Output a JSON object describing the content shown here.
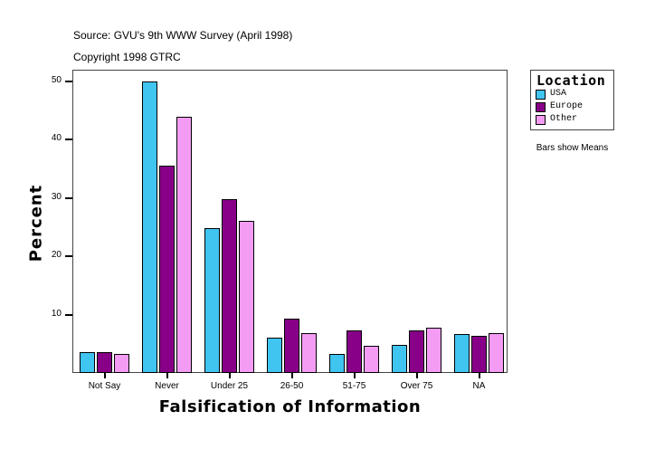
{
  "header": {
    "source": "Source: GVU's 9th WWW Survey (April 1998)",
    "copyright": "Copyright 1998 GTRC"
  },
  "legend": {
    "title": "Location",
    "items": [
      {
        "label": "USA",
        "color": "#40c4f0"
      },
      {
        "label": "Europe",
        "color": "#880088"
      },
      {
        "label": "Other",
        "color": "#f49cf4"
      }
    ],
    "note": "Bars show Means"
  },
  "axes": {
    "x_title": "Falsification of Information",
    "y_title": "Percent",
    "y_ticks": [
      "10",
      "20",
      "30",
      "40",
      "50"
    ]
  },
  "chart_data": {
    "type": "bar",
    "title": "",
    "subtitle": "Source: GVU's 9th WWW Survey (April 1998) / Copyright 1998 GTRC",
    "xlabel": "Falsification of Information",
    "ylabel": "Percent",
    "categories": [
      "Not Say",
      "Never",
      "Under 25",
      "26-50",
      "51-75",
      "Over 75",
      "NA"
    ],
    "series": [
      {
        "name": "USA",
        "color": "#40c4f0",
        "values": [
          3.6,
          50.0,
          24.8,
          6.0,
          3.3,
          4.8,
          6.7
        ]
      },
      {
        "name": "Europe",
        "color": "#880088",
        "values": [
          3.6,
          35.5,
          29.8,
          9.3,
          7.3,
          7.3,
          6.4
        ]
      },
      {
        "name": "Other",
        "color": "#f49cf4",
        "values": [
          3.3,
          43.9,
          26.0,
          6.8,
          4.7,
          7.8,
          6.8
        ]
      }
    ],
    "ylim": [
      0,
      52
    ],
    "y_ticks": [
      10,
      20,
      30,
      40,
      50
    ],
    "grid": false,
    "legend_position": "right",
    "legend_title": "Location",
    "annotations": [
      "Bars show Means"
    ]
  }
}
